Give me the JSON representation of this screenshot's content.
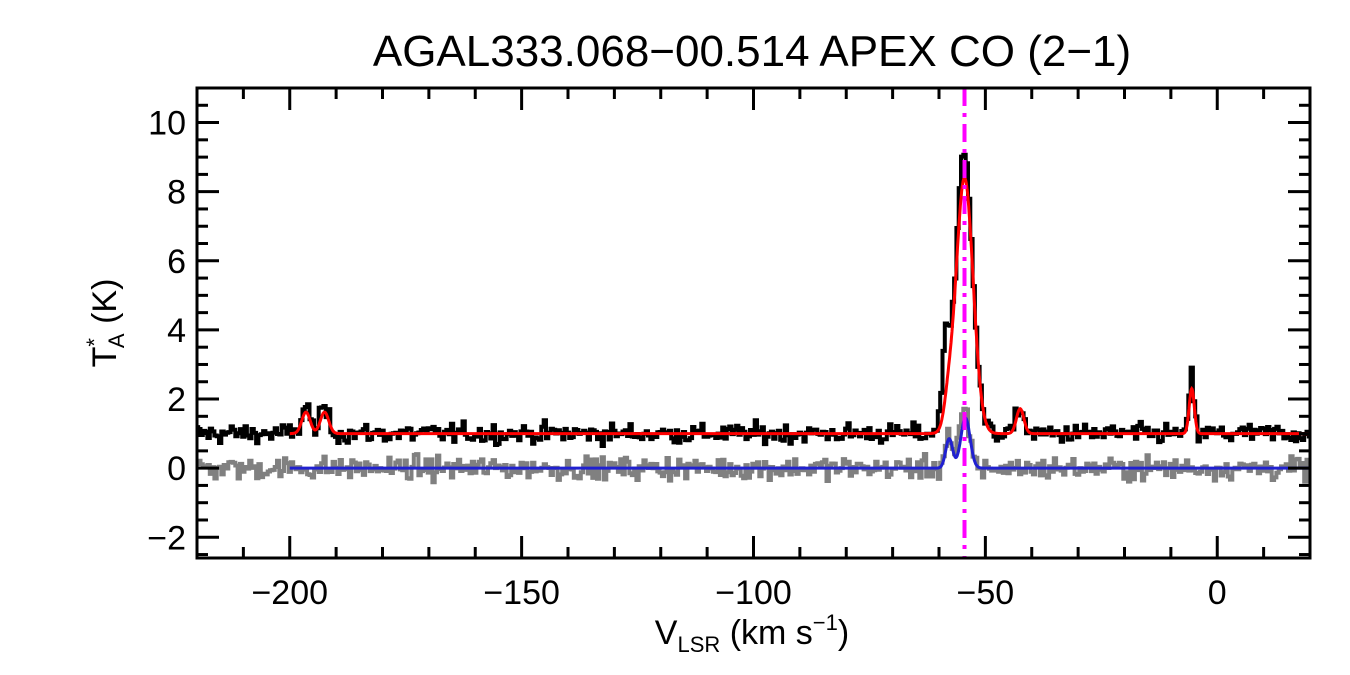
{
  "chart_data": {
    "type": "line",
    "title": "AGAL333.068−00.514  APEX CO (2−1)",
    "xlabel": {
      "main": "V",
      "sub": "LSR",
      "rest": " (km s",
      "sup": "−1",
      "end": ")"
    },
    "ylabel": {
      "main": "T",
      "sup": "*",
      "sub": "A",
      "rest": " (K)"
    },
    "xlim": [
      -220,
      20
    ],
    "ylim": [
      -2.6,
      11.0
    ],
    "x_ticks": [
      -200,
      -150,
      -100,
      -50,
      0
    ],
    "x_tick_labels": [
      "−200",
      "−150",
      "−100",
      "−50",
      "0"
    ],
    "y_ticks": [
      -2,
      0,
      2,
      4,
      6,
      8,
      10
    ],
    "y_tick_labels": [
      "−2",
      "0",
      "2",
      "4",
      "6",
      "8",
      "10"
    ],
    "grid": false,
    "vline": {
      "x": -54.5,
      "style": "dash-dot",
      "color": "#ff00ff"
    },
    "series": [
      {
        "kind": "histogram",
        "color": "#000000",
        "baseline": 1.0,
        "noise": 0.22,
        "range": [
          -220,
          20
        ],
        "components": [
          {
            "center": -196.5,
            "amp": 0.8,
            "sigma": 0.9
          },
          {
            "center": -192.5,
            "amp": 0.75,
            "sigma": 0.9
          },
          {
            "center": -58.5,
            "amp": 2.5,
            "sigma": 0.8
          },
          {
            "center": -54.5,
            "amp": 8.2,
            "sigma": 1.8
          },
          {
            "center": -42.5,
            "amp": 0.8,
            "sigma": 0.8
          },
          {
            "center": -5.5,
            "amp": 1.7,
            "sigma": 0.5
          }
        ]
      },
      {
        "kind": "histogram",
        "color": "#808080",
        "baseline": 0.0,
        "noise": 0.25,
        "range": [
          -220,
          20
        ],
        "components": [
          {
            "center": -58,
            "amp": 1.0,
            "sigma": 0.7
          },
          {
            "center": -54.5,
            "amp": 1.6,
            "sigma": 1.1
          }
        ]
      },
      {
        "kind": "fit",
        "color": "#ff0000",
        "baseline": 1.0,
        "range": [
          -200,
          20
        ],
        "components": [
          {
            "center": -196.5,
            "amp": 0.62,
            "sigma": 0.9
          },
          {
            "center": -192.5,
            "amp": 0.62,
            "sigma": 0.9
          },
          {
            "center": -58.0,
            "amp": 0.6,
            "sigma": 0.9
          },
          {
            "center": -54.5,
            "amp": 7.4,
            "sigma": 1.85
          },
          {
            "center": -42.5,
            "amp": 0.72,
            "sigma": 0.8
          },
          {
            "center": -5.5,
            "amp": 1.3,
            "sigma": 0.55
          }
        ]
      },
      {
        "kind": "fit",
        "color": "#2020d0",
        "baseline": 0.0,
        "range": [
          -200,
          20
        ],
        "components": [
          {
            "center": -57.8,
            "amp": 0.85,
            "sigma": 0.75
          },
          {
            "center": -54.3,
            "amp": 1.45,
            "sigma": 1.0
          }
        ]
      }
    ]
  }
}
